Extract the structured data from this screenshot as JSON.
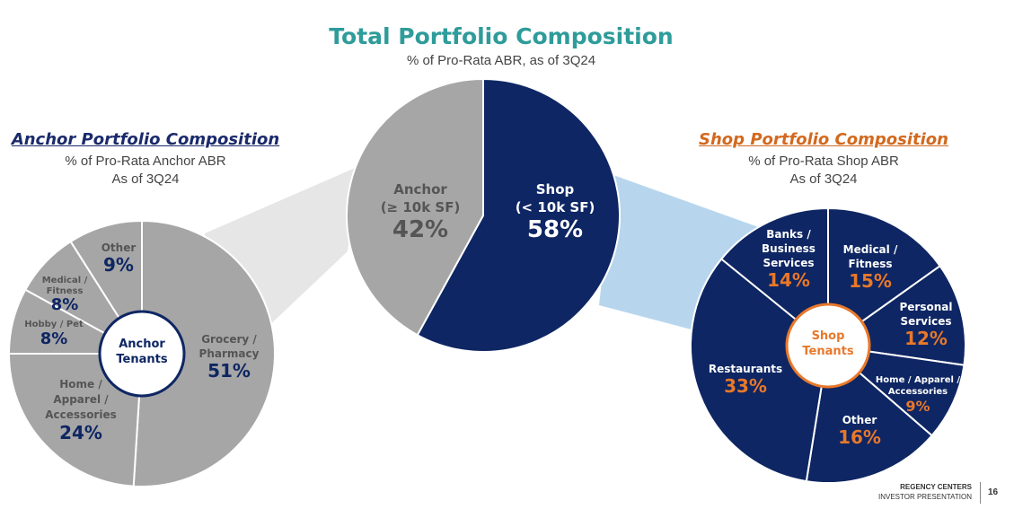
{
  "header": {
    "title": "Total Portfolio Composition",
    "subtitle": "% of Pro-Rata ABR, as of 3Q24"
  },
  "anchor_panel": {
    "title": "Anchor Portfolio Composition",
    "subtitle_line1": "% of Pro-Rata Anchor ABR",
    "subtitle_line2": "As of 3Q24",
    "center_label": [
      "Anchor",
      "Tenants"
    ]
  },
  "shop_panel": {
    "title": "Shop Portfolio Composition",
    "subtitle_line1": "% of Pro-Rata Shop ABR",
    "subtitle_line2": "As of 3Q24",
    "center_label": [
      "Shop",
      "Tenants"
    ]
  },
  "footer": {
    "brand": "REGENCY CENTERS",
    "subtitle": "INVESTOR PRESENTATION",
    "page": "16"
  },
  "colors": {
    "anchor_gray": "#a6a6a6",
    "shop_navy": "#0e2663",
    "accent_teal": "#2e9c9a",
    "accent_orange": "#e8782a",
    "connector_gray": "#e6e6e6",
    "connector_blue": "#b7d6ee"
  },
  "chart_data": [
    {
      "type": "pie",
      "title": "Total Portfolio Composition",
      "categories": [
        "Shop (< 10k SF)",
        "Anchor (≥ 10k SF)"
      ],
      "label_lines": [
        [
          "Shop",
          "(< 10k SF)"
        ],
        [
          "Anchor",
          "(≥ 10k SF)"
        ]
      ],
      "values": [
        58,
        42
      ],
      "value_labels": [
        "58%",
        "42%"
      ]
    },
    {
      "type": "pie",
      "title": "Anchor Portfolio Composition",
      "categories": [
        "Grocery / Pharmacy",
        "Home / Apparel / Accessories",
        "Hobby / Pet",
        "Medical / Fitness",
        "Other"
      ],
      "label_lines": [
        [
          "Grocery /",
          "Pharmacy"
        ],
        [
          "Home /",
          "Apparel /",
          "Accessories"
        ],
        [
          "Hobby / Pet"
        ],
        [
          "Medical /",
          "Fitness"
        ],
        [
          "Other"
        ]
      ],
      "values": [
        51,
        24,
        8,
        8,
        9
      ],
      "value_labels": [
        "51%",
        "24%",
        "8%",
        "8%",
        "9%"
      ]
    },
    {
      "type": "pie",
      "title": "Shop Portfolio Composition",
      "categories": [
        "Medical / Fitness",
        "Personal Services",
        "Home / Apparel / Accessories",
        "Other",
        "Restaurants",
        "Banks / Business Services"
      ],
      "label_lines": [
        [
          "Medical /",
          "Fitness"
        ],
        [
          "Personal",
          "Services"
        ],
        [
          "Home / Apparel /",
          "Accessories"
        ],
        [
          "Other"
        ],
        [
          "Restaurants"
        ],
        [
          "Banks /",
          "Business",
          "Services"
        ]
      ],
      "values": [
        15,
        12,
        9,
        16,
        33,
        14
      ],
      "value_labels": [
        "15%",
        "12%",
        "9%",
        "16%",
        "33%",
        "14%"
      ]
    }
  ]
}
